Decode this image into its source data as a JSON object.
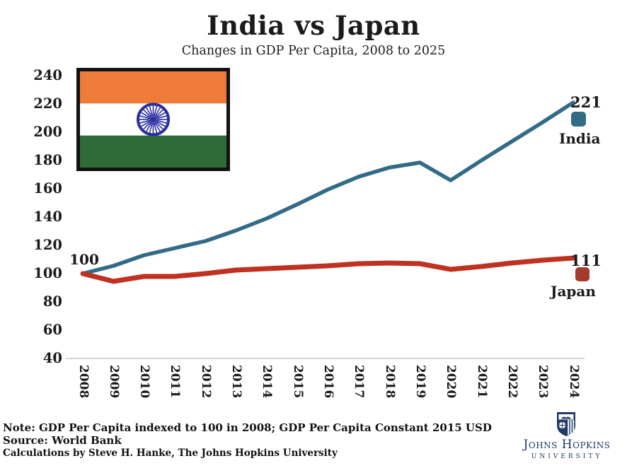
{
  "header": {
    "title": "India vs Japan",
    "subtitle": "Changes in GDP Per Capita, 2008 to 2025"
  },
  "chart_data": {
    "type": "line",
    "title": "India vs Japan",
    "subtitle": "Changes in GDP Per Capita, 2008 to 2025",
    "x": [
      2008,
      2009,
      2010,
      2011,
      2012,
      2013,
      2014,
      2015,
      2016,
      2017,
      2018,
      2019,
      2020,
      2021,
      2022,
      2023,
      2024
    ],
    "x_tick_labels": [
      "2008",
      "2009",
      "2010",
      "2011",
      "2012",
      "2013",
      "2014",
      "2015",
      "2016",
      "2017",
      "2018",
      "2019",
      "2020",
      "2021",
      "2022",
      "2023",
      "2024"
    ],
    "yticks": [
      240,
      220,
      200,
      180,
      160,
      140,
      120,
      100,
      80,
      60,
      40
    ],
    "ylim": [
      40,
      240
    ],
    "grid": false,
    "legend_position": "right-of-line-ends",
    "axis_line_color": "#c9c9c9",
    "series": [
      {
        "name": "India",
        "color": "#336b87",
        "marker_color": "#336b87",
        "line_width": 5.5,
        "end_label": "221",
        "values": [
          100,
          105.5,
          113,
          118,
          123,
          130.5,
          139,
          149,
          159.5,
          168.5,
          175,
          178.5,
          166,
          180,
          193.5,
          207,
          221
        ]
      },
      {
        "name": "Japan",
        "color": "#bf3222",
        "marker_color": "#a53b2c",
        "line_width": 7,
        "end_label": "111",
        "values": [
          100,
          94.5,
          98,
          98,
          100,
          102.5,
          103.5,
          104.5,
          105.5,
          107,
          107.5,
          107,
          103,
          105,
          107.5,
          109.5,
          111
        ]
      }
    ],
    "start_label": "100"
  },
  "annotations": {
    "start_value": "100",
    "india": {
      "value": "221",
      "label": "India"
    },
    "japan": {
      "value": "111",
      "label": "Japan"
    }
  },
  "footer": {
    "note": "Note: GDP Per Capita indexed to 100 in 2008; GDP Per Capita Constant 2015 USD",
    "source": "Source: World Bank",
    "calculations": "Calculations by Steve H. Hanke, The Johns Hopkins University"
  },
  "logo": {
    "name": "Johns Hopkins",
    "subtext": "UNIVERSITY",
    "color": "#213a66"
  },
  "flag": {
    "country": "India",
    "saffron": "#ef7b39",
    "white": "#ffffff",
    "green": "#2e6b39",
    "chakra": "#2b2fa0",
    "border": "#121212"
  }
}
